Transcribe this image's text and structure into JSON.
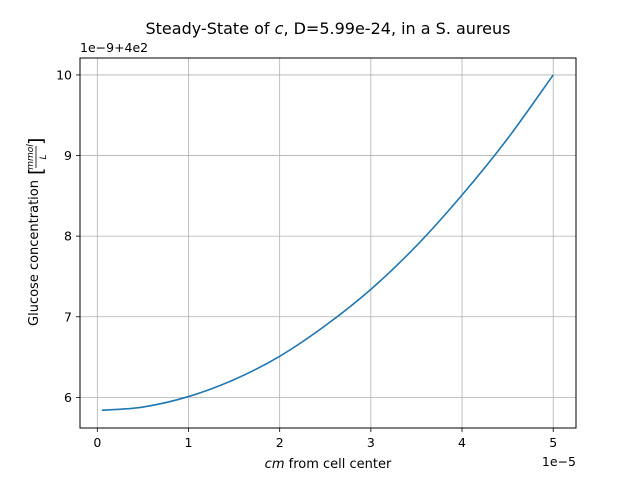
{
  "chart_data": {
    "type": "line",
    "title_pre": "Steady-State of ",
    "title_var": "c",
    "title_post": ", D=5.99e-24, in a S. aureus",
    "xlabel_var": "cm",
    "xlabel_post": " from cell center",
    "ylabel_main": "Glucose concentration",
    "ylabel_unit_num": "mmol",
    "ylabel_unit_den": "L",
    "x_offset_text": "1e−5",
    "y_offset_text": "1e−9+4e2",
    "x_ticks": [
      0,
      1,
      2,
      3,
      4,
      5
    ],
    "x_tick_labels": [
      "0",
      "1",
      "2",
      "3",
      "4",
      "5"
    ],
    "y_ticks": [
      6,
      7,
      8,
      9,
      10
    ],
    "y_tick_labels": [
      "6",
      "7",
      "8",
      "9",
      "10"
    ],
    "xlim": [
      -0.19,
      5.25
    ],
    "ylim": [
      5.62,
      10.21
    ],
    "grid": true,
    "line_color": "#1f77b4",
    "series": [
      {
        "x": [
          0.05,
          0.5,
          1.0,
          1.5,
          2.0,
          2.5,
          3.0,
          3.5,
          4.0,
          4.5,
          5.0
        ],
        "y": [
          5.84,
          5.88,
          6.01,
          6.22,
          6.51,
          6.89,
          7.34,
          7.88,
          8.51,
          9.21,
          10.0
        ]
      }
    ]
  }
}
